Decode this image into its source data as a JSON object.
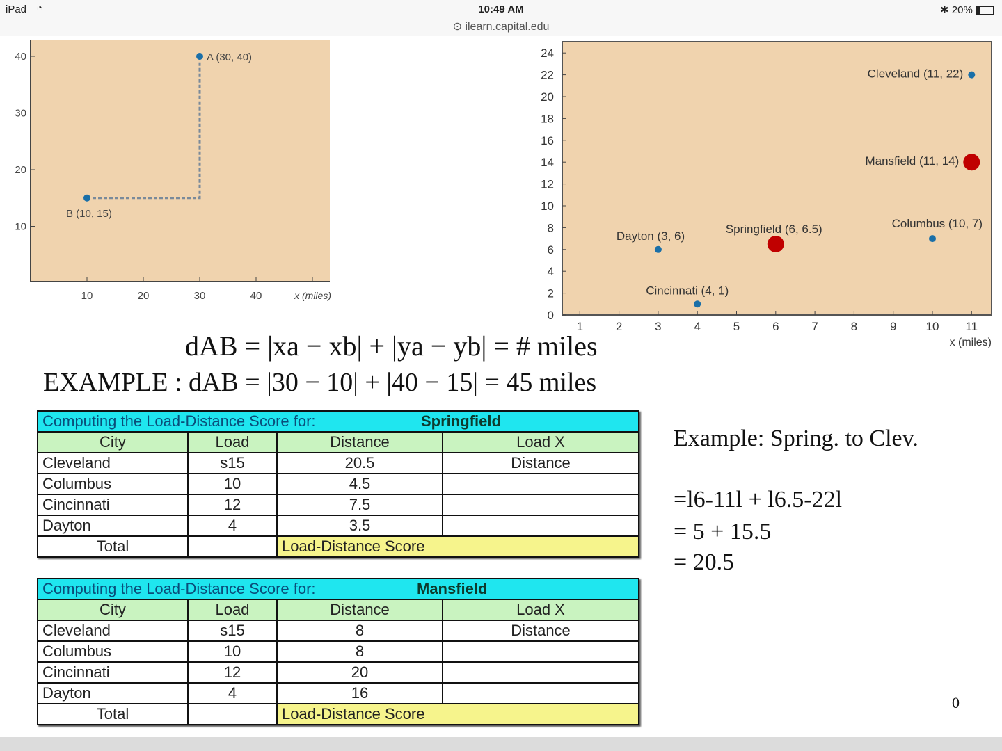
{
  "status_bar": {
    "device": "iPad",
    "time": "10:49 AM",
    "url": "ilearn.capital.edu",
    "battery": "20%"
  },
  "chart_data": [
    {
      "type": "scatter",
      "title": "",
      "xlabel": "x (miles)",
      "ylabel": "",
      "xlim": [
        0,
        53
      ],
      "ylim": [
        0,
        43
      ],
      "xticks": [
        "10",
        "20",
        "30",
        "40"
      ],
      "yticks": [
        "10",
        "20",
        "30",
        "40"
      ],
      "points": [
        {
          "label": "A (30, 40)",
          "x": 30,
          "y": 40
        },
        {
          "label": "B (10, 15)",
          "x": 10,
          "y": 15
        }
      ],
      "path": "rectilinear dashed from B to corner (30,15) to A"
    },
    {
      "type": "scatter",
      "title": "",
      "xlabel": "x (miles)",
      "ylabel": "",
      "xlim": [
        0.55,
        11.5
      ],
      "ylim": [
        0,
        24.5
      ],
      "xticks": [
        "1",
        "2",
        "3",
        "4",
        "5",
        "6",
        "7",
        "8",
        "9",
        "10",
        "11"
      ],
      "yticks": [
        "0",
        "2",
        "4",
        "6",
        "8",
        "10",
        "12",
        "14",
        "16",
        "18",
        "20",
        "22",
        "24"
      ],
      "points": [
        {
          "label": "Cleveland (11, 22)",
          "x": 11,
          "y": 22,
          "kind": "city"
        },
        {
          "label": "Mansfield (11, 14)",
          "x": 11,
          "y": 14,
          "kind": "site"
        },
        {
          "label": "Columbus (10, 7)",
          "x": 10,
          "y": 7,
          "kind": "city"
        },
        {
          "label": "Springfield (6, 6.5)",
          "x": 6,
          "y": 6.5,
          "kind": "site"
        },
        {
          "label": "Dayton (3, 6)",
          "x": 3,
          "y": 6,
          "kind": "city"
        },
        {
          "label": "Cincinnati (4, 1)",
          "x": 4,
          "y": 1,
          "kind": "city"
        }
      ]
    }
  ],
  "formula": {
    "general_lhs": "dAB =",
    "general_rhs": "|xa − xb| + |ya − yb| = #  miles",
    "example_label": "EXAMPLE :",
    "example": "dAB = |30 − 10| + |40 − 15| = 45  miles"
  },
  "tables": [
    {
      "title": "Computing the Load-Distance Score for:",
      "site": "Springfield",
      "headers": [
        "City",
        "Load",
        "Distance",
        "Load X"
      ],
      "rows": [
        [
          "Cleveland",
          "s15",
          "20.5",
          "Distance"
        ],
        [
          "Columbus",
          "10",
          "4.5",
          ""
        ],
        [
          "Cincinnati",
          "12",
          "7.5",
          ""
        ],
        [
          "Dayton",
          "4",
          "3.5",
          ""
        ]
      ],
      "total": "Total",
      "score": "Load-Distance Score"
    },
    {
      "title": "Computing the Load-Distance Score for:",
      "site": "Mansfield",
      "headers": [
        "City",
        "Load",
        "Distance",
        "Load X"
      ],
      "rows": [
        [
          "Cleveland",
          "s15",
          "8",
          "Distance"
        ],
        [
          "Columbus",
          "10",
          "8",
          ""
        ],
        [
          "Cincinnati",
          "12",
          "20",
          ""
        ],
        [
          "Dayton",
          "4",
          "16",
          ""
        ]
      ],
      "total": "Total",
      "score": "Load-Distance Score"
    }
  ],
  "example_note": {
    "title": "Example: Spring. to Clev.",
    "lines": [
      "=l6-11l + l6.5-22l",
      "= 5 + 15.5",
      "= 20.5"
    ]
  },
  "page_number": "0",
  "colors": {
    "plot_bg": "#f0d3ae",
    "city_dot": "#1a6fa8",
    "site_dot": "#c00000",
    "title_row": "#1fe6ef",
    "header_row": "#c9f3c0",
    "score_cell": "#f6f48c"
  }
}
